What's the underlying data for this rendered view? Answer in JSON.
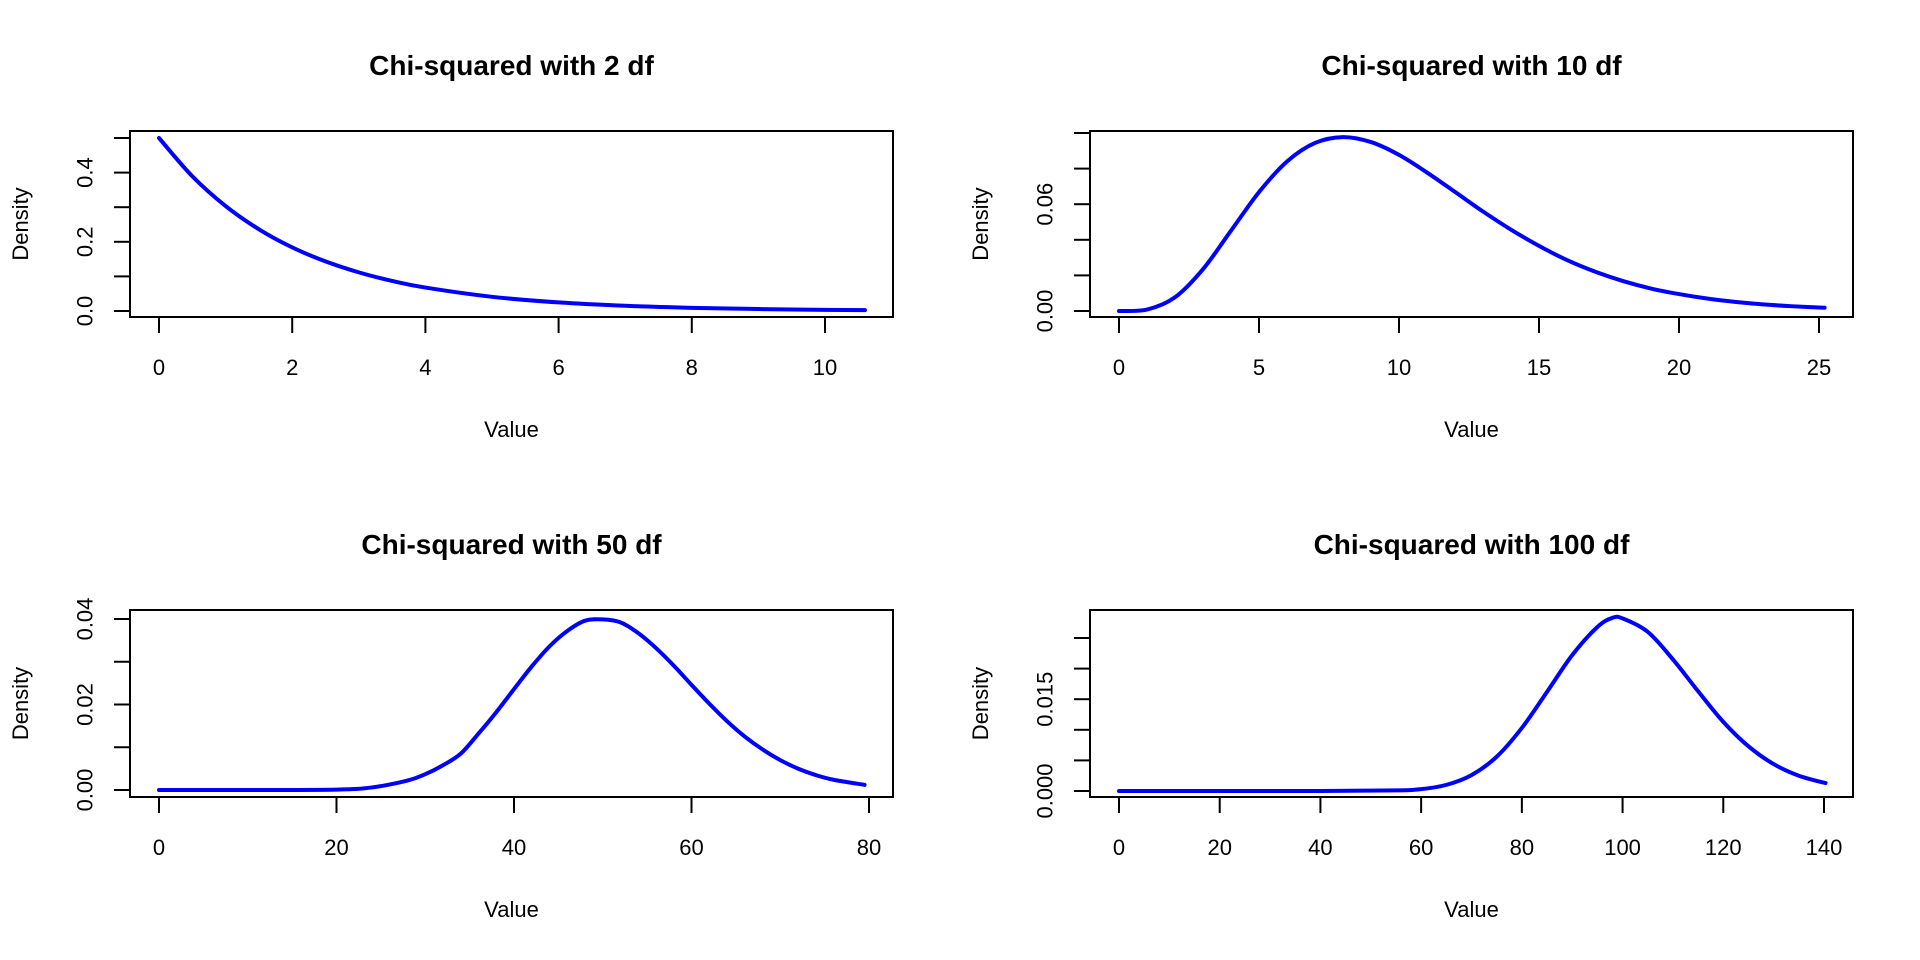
{
  "chart_data": [
    {
      "type": "line",
      "title": "Chi-squared with 2 df",
      "xlabel": "Value",
      "ylabel": "Density",
      "df": 2,
      "line_color": "#0000ff",
      "xlim": [
        0,
        10.6
      ],
      "ylim": [
        0,
        0.5
      ],
      "x_ticks": [
        0,
        2,
        4,
        6,
        8,
        10
      ],
      "x_tick_labels": [
        "0",
        "2",
        "4",
        "6",
        "8",
        "10"
      ],
      "y_ticks": [
        0,
        0.1,
        0.2,
        0.3,
        0.4,
        0.5
      ],
      "y_tick_labels": [
        "0.0",
        "",
        "0.2",
        "",
        "0.4",
        ""
      ],
      "series": [
        {
          "name": "density",
          "x": [
            0,
            0.5,
            1,
            1.5,
            2,
            2.5,
            3,
            3.5,
            4,
            5,
            6,
            7,
            8,
            9,
            10,
            10.6
          ],
          "y": [
            0.5,
            0.3894,
            0.3033,
            0.2362,
            0.1839,
            0.1433,
            0.1116,
            0.0869,
            0.0677,
            0.041,
            0.0249,
            0.0151,
            0.0092,
            0.0056,
            0.0034,
            0.0025
          ]
        }
      ]
    },
    {
      "type": "line",
      "title": "Chi-squared with 10 df",
      "xlabel": "Value",
      "ylabel": "Density",
      "df": 10,
      "line_color": "#0000ff",
      "xlim": [
        0,
        25.2
      ],
      "ylim": [
        0,
        0.1
      ],
      "x_ticks": [
        0,
        5,
        10,
        15,
        20,
        25
      ],
      "x_tick_labels": [
        "0",
        "5",
        "10",
        "15",
        "20",
        "25"
      ],
      "y_ticks": [
        0,
        0.02,
        0.04,
        0.06,
        0.08,
        0.1
      ],
      "y_tick_labels": [
        "0.00",
        "",
        "",
        "0.06",
        "",
        ""
      ],
      "series": [
        {
          "name": "density",
          "x": [
            0,
            1,
            2,
            3,
            4,
            5,
            6,
            7,
            8,
            9,
            10,
            11,
            12,
            13,
            14,
            15,
            16,
            17,
            18,
            19,
            20,
            21,
            22,
            23,
            24,
            25.2
          ],
          "y": [
            0,
            0.0008,
            0.0077,
            0.0235,
            0.0451,
            0.0668,
            0.084,
            0.0944,
            0.0977,
            0.0949,
            0.0877,
            0.0778,
            0.0669,
            0.0559,
            0.0457,
            0.0366,
            0.0286,
            0.0221,
            0.0168,
            0.0126,
            0.0095,
            0.007,
            0.0051,
            0.0037,
            0.0027,
            0.0018
          ]
        }
      ]
    },
    {
      "type": "line",
      "title": "Chi-squared with 50 df",
      "xlabel": "Value",
      "ylabel": "Density",
      "df": 50,
      "line_color": "#0000ff",
      "xlim": [
        0,
        79.5
      ],
      "ylim": [
        0,
        0.04
      ],
      "x_ticks": [
        0,
        20,
        40,
        60,
        80
      ],
      "x_tick_labels": [
        "0",
        "20",
        "40",
        "60",
        "80"
      ],
      "y_ticks": [
        0,
        0.01,
        0.02,
        0.03,
        0.04
      ],
      "y_tick_labels": [
        "0.00",
        "",
        "0.02",
        "",
        "0.04"
      ],
      "series": [
        {
          "name": "density",
          "x": [
            0,
            10,
            20,
            24,
            28,
            30,
            32,
            34,
            36,
            38,
            40,
            42,
            44,
            46,
            48,
            50,
            52,
            54,
            56,
            58,
            60,
            62,
            64,
            66,
            68,
            70,
            72,
            74,
            76,
            79.5
          ],
          "y": [
            0,
            0,
            0.0001,
            0.0006,
            0.0022,
            0.0037,
            0.0058,
            0.0085,
            0.0132,
            0.0182,
            0.0236,
            0.0289,
            0.0336,
            0.0372,
            0.0396,
            0.0399,
            0.0392,
            0.0367,
            0.0332,
            0.0291,
            0.0246,
            0.0202,
            0.0161,
            0.0125,
            0.0095,
            0.007,
            0.005,
            0.0035,
            0.0024,
            0.0012
          ]
        }
      ]
    },
    {
      "type": "line",
      "title": "Chi-squared with 100 df",
      "xlabel": "Value",
      "ylabel": "Density",
      "df": 100,
      "line_color": "#0000ff",
      "xlim": [
        0,
        140.3
      ],
      "ylim": [
        0,
        0.025
      ],
      "x_ticks": [
        0,
        20,
        40,
        60,
        80,
        100,
        120,
        140
      ],
      "x_tick_labels": [
        "0",
        "20",
        "40",
        "60",
        "80",
        "100",
        "120",
        "140"
      ],
      "y_ticks": [
        0,
        0.005,
        0.01,
        0.015,
        0.02,
        0.025
      ],
      "y_tick_labels": [
        "0.000",
        "",
        "",
        "0.015",
        "",
        ""
      ],
      "series": [
        {
          "name": "density",
          "x": [
            0,
            20,
            40,
            55,
            60,
            65,
            70,
            75,
            80,
            85,
            90,
            95,
            98,
            100,
            105,
            110,
            115,
            120,
            125,
            130,
            135,
            140.3
          ],
          "y": [
            0,
            0,
            0,
            0.0001,
            0.0003,
            0.001,
            0.0026,
            0.0056,
            0.0103,
            0.0162,
            0.0222,
            0.0268,
            0.0283,
            0.0282,
            0.026,
            0.0215,
            0.0163,
            0.0113,
            0.0073,
            0.0044,
            0.0025,
            0.0013
          ]
        }
      ]
    }
  ]
}
